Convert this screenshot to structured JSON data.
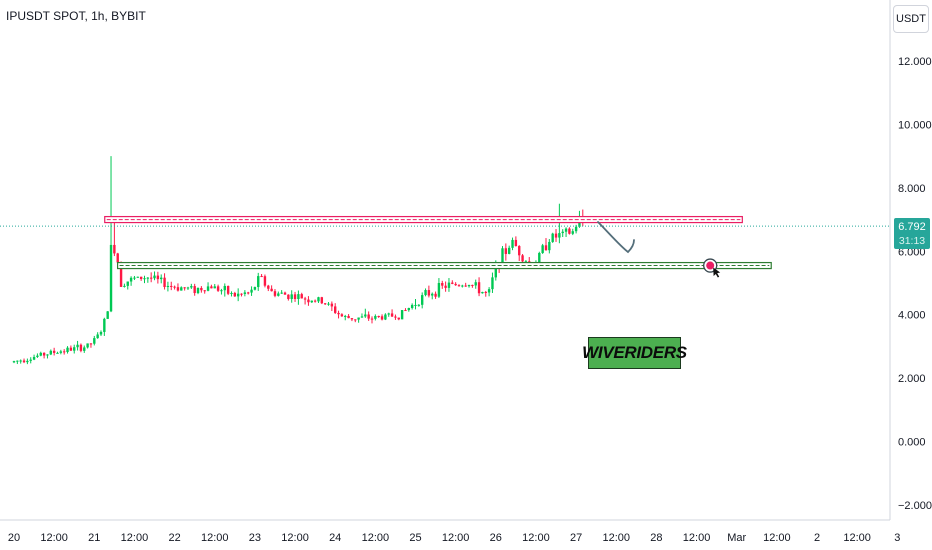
{
  "chart_data": {
    "type": "candlestick",
    "title": "IPUSDT SPOT, 1h, BYBIT",
    "currency": "USDT",
    "y_ticks": [
      "12.000",
      "10.000",
      "8.000",
      "6.000",
      "4.000",
      "2.000",
      "0.000",
      "−2.000"
    ],
    "y_tick_values": [
      12,
      10,
      8,
      6,
      4,
      2,
      0,
      -2
    ],
    "ylim": [
      -2.3,
      13.7
    ],
    "x_ticks": [
      "20",
      "12:00",
      "21",
      "12:00",
      "22",
      "12:00",
      "23",
      "12:00",
      "24",
      "12:00",
      "25",
      "12:00",
      "26",
      "12:00",
      "27",
      "12:00",
      "28",
      "12:00",
      "Mar",
      "12:00",
      "2",
      "12:00",
      "3"
    ],
    "last_price": "6.792",
    "last_price_value": 6.792,
    "countdown": "31:13",
    "resistance": 7.0,
    "support": 5.55,
    "watermark": "WIVERIDERS",
    "colors": {
      "up": "#26a69a",
      "down": "#ef5350",
      "up_bright": "#00c853",
      "down_bright": "#ff1744",
      "resistance": "#e91e63",
      "support": "#2e7d32",
      "arrow": "#546e7a",
      "marker": "#e91e63",
      "last_price_line": "#26a69a"
    },
    "ohlc": [
      {
        "period": "Feb 20",
        "open": 2.5,
        "close": 3.2,
        "high": 3.7,
        "low": 2.45
      },
      {
        "period": "Feb 21",
        "open": 3.2,
        "close": 5.5,
        "high": 9.0,
        "low": 3.1
      },
      {
        "period": "Feb 22",
        "open": 5.5,
        "close": 4.8,
        "high": 5.5,
        "low": 4.3
      },
      {
        "period": "Feb 23",
        "open": 4.8,
        "close": 4.6,
        "high": 5.3,
        "low": 4.2
      },
      {
        "period": "Feb 24",
        "open": 4.6,
        "close": 4.0,
        "high": 4.6,
        "low": 3.7
      },
      {
        "period": "Feb 25",
        "open": 4.0,
        "close": 4.7,
        "high": 5.3,
        "low": 3.8
      },
      {
        "period": "Feb 26",
        "open": 4.7,
        "close": 6.0,
        "high": 6.6,
        "low": 4.5
      },
      {
        "period": "Feb 27",
        "open": 6.0,
        "close": 6.79,
        "high": 7.5,
        "low": 5.4
      }
    ]
  }
}
